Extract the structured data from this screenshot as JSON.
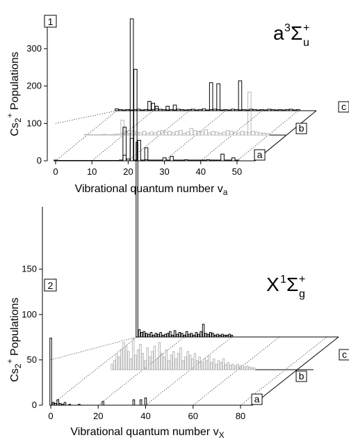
{
  "chart_data": [
    {
      "type": "bar",
      "panel_label": "1",
      "state_main": "a",
      "state_sup": "3",
      "state_sym": "Σ",
      "state_sub": "u",
      "state_sup2": "+",
      "xlabel_main": "Vibrational quantum number v",
      "xlabel_sub": "a",
      "ylabel_pre": "Cs",
      "ylabel_sub": "2",
      "ylabel_sup": "+",
      "ylabel_post": " Populations",
      "xlim": [
        0,
        55
      ],
      "ylim": [
        0,
        380
      ],
      "xticks": [
        "0",
        "10",
        "20",
        "30",
        "40",
        "50"
      ],
      "xtick_values": [
        0,
        10,
        20,
        30,
        40,
        50
      ],
      "yticks": [
        "0",
        "100",
        "200",
        "300"
      ],
      "ytick_values": [
        0,
        100,
        200,
        300
      ],
      "series_labels": [
        "a",
        "b",
        "c"
      ],
      "series": [
        {
          "label": "a",
          "x": [
            0,
            1,
            2,
            3,
            4,
            5,
            6,
            7,
            8,
            9,
            10,
            11,
            12,
            13,
            14,
            15,
            16,
            17,
            18,
            19,
            20,
            21,
            22,
            23,
            24,
            25,
            26,
            27,
            28,
            29,
            30,
            31,
            32,
            33,
            34,
            35,
            36,
            37,
            38,
            39,
            40,
            41,
            42,
            43,
            44,
            45,
            46,
            47,
            48,
            49,
            50
          ],
          "values": [
            2,
            1,
            1,
            1,
            1,
            1,
            1,
            1,
            1,
            1,
            1,
            1,
            1,
            1,
            1,
            1,
            1,
            1,
            2,
            15,
            5,
            60,
            2,
            55,
            2,
            3,
            2,
            2,
            2,
            2,
            8,
            2,
            12,
            2,
            2,
            2,
            3,
            2,
            2,
            2,
            2,
            2,
            3,
            2,
            2,
            2,
            18,
            2,
            2,
            8,
            2
          ]
        },
        {
          "label": "b",
          "x": [
            0,
            1,
            2,
            3,
            4,
            5,
            6,
            7,
            8,
            9,
            10,
            11,
            12,
            13,
            14,
            15,
            16,
            17,
            18,
            19,
            20,
            21,
            22,
            23,
            24,
            25,
            26,
            27,
            28,
            29,
            30,
            31,
            32,
            33,
            34,
            35,
            36,
            37,
            38,
            39,
            40,
            41,
            42,
            43,
            44,
            45,
            46,
            47,
            48,
            49,
            50
          ],
          "values": [
            2,
            1,
            1,
            1,
            1,
            2,
            1,
            1,
            2,
            3,
            5,
            10,
            4,
            12,
            8,
            6,
            10,
            5,
            8,
            6,
            10,
            12,
            8,
            10,
            6,
            10,
            12,
            5,
            8,
            18,
            12,
            10,
            8,
            14,
            6,
            10,
            8,
            5,
            8,
            12,
            10,
            8,
            6,
            10,
            8,
            6,
            10,
            8,
            6,
            5,
            4
          ]
        },
        {
          "label": "c",
          "x": [
            0,
            1,
            2,
            3,
            4,
            5,
            6,
            7,
            8,
            9,
            10,
            11,
            12,
            13,
            14,
            15,
            16,
            17,
            18,
            19,
            20,
            21,
            22,
            23,
            24,
            25,
            26,
            27,
            28,
            29,
            30,
            31,
            32,
            33,
            34,
            35,
            36,
            37,
            38,
            39,
            40,
            41,
            42,
            43,
            44,
            45,
            46,
            47,
            48,
            49,
            50
          ],
          "values": [
            5,
            3,
            2,
            3,
            2,
            3,
            4,
            2,
            3,
            2,
            3,
            5,
            4,
            3,
            2,
            3,
            2,
            4,
            3,
            2,
            3,
            4,
            2,
            3,
            5,
            2,
            3,
            4,
            3,
            2,
            3,
            2,
            4,
            3,
            2,
            3,
            2,
            4,
            3,
            2,
            3,
            2,
            4,
            3,
            2,
            3,
            2,
            3,
            4,
            2,
            3
          ]
        }
      ],
      "extra_a_bars": [
        {
          "x": 19,
          "value": 90
        },
        {
          "x": 21,
          "value": 380
        },
        {
          "x": 22,
          "value": 245
        },
        {
          "x": 25,
          "value": 35
        }
      ],
      "extra_c_bars": [
        {
          "x": 9,
          "value": 25
        },
        {
          "x": 10,
          "value": 20
        },
        {
          "x": 11,
          "value": 12
        },
        {
          "x": 14,
          "value": 12
        },
        {
          "x": 16,
          "value": 15
        },
        {
          "x": 26,
          "value": 75
        },
        {
          "x": 28,
          "value": 72
        },
        {
          "x": 34,
          "value": 80
        }
      ],
      "extra_b_bars": [
        {
          "x": 45,
          "value": 115
        },
        {
          "x": 10,
          "value": 40
        }
      ]
    },
    {
      "type": "bar",
      "panel_label": "2",
      "state_main": "X",
      "state_sup": "1",
      "state_sym": "Σ",
      "state_sub": "g",
      "state_sup2": "+",
      "xlabel_main": "Vibrational quantum number v",
      "xlabel_sub": "X",
      "ylabel_pre": "Cs",
      "ylabel_sub": "2",
      "ylabel_sup": "+",
      "ylabel_post": " Populations",
      "xlim": [
        0,
        85
      ],
      "ylim": [
        0,
        215
      ],
      "xticks": [
        "0",
        "20",
        "40",
        "60",
        "80"
      ],
      "xtick_values": [
        0,
        20,
        40,
        60,
        80
      ],
      "yticks": [
        "0",
        "50",
        "100",
        "150"
      ],
      "ytick_values": [
        0,
        50,
        100,
        150
      ],
      "series_labels": [
        "a",
        "b",
        "c"
      ],
      "series": [
        {
          "label": "a",
          "x": [
            0,
            1,
            2,
            3,
            4,
            5,
            6,
            8,
            12,
            22,
            35,
            38,
            40
          ],
          "values": [
            74,
            3,
            2,
            6,
            2,
            1,
            3,
            1,
            1,
            4,
            6,
            6,
            8
          ]
        },
        {
          "label": "b",
          "x": [
            0,
            1,
            2,
            3,
            4,
            5,
            6,
            7,
            8,
            9,
            10,
            11,
            12,
            13,
            14,
            15,
            16,
            17,
            18,
            19,
            20,
            21,
            22,
            23,
            24,
            25,
            26,
            27,
            28,
            29,
            30,
            31,
            32,
            33,
            34,
            35,
            36,
            37,
            38,
            39,
            40,
            41,
            42,
            43,
            44,
            45,
            46,
            47,
            48,
            49,
            50,
            51,
            52,
            53,
            54,
            55,
            56,
            57,
            58,
            59,
            60
          ],
          "values": [
            6,
            10,
            18,
            14,
            22,
            30,
            26,
            20,
            12,
            34,
            16,
            22,
            28,
            18,
            10,
            24,
            14,
            20,
            26,
            12,
            30,
            18,
            14,
            22,
            10,
            16,
            20,
            12,
            18,
            24,
            10,
            14,
            20,
            16,
            12,
            18,
            10,
            14,
            8,
            12,
            10,
            16,
            8,
            12,
            6,
            10,
            8,
            12,
            6,
            8,
            5,
            6,
            4,
            6,
            4,
            5,
            3,
            4,
            3,
            2,
            2
          ]
        },
        {
          "label": "c",
          "x": [
            0,
            1,
            2,
            3,
            4,
            5,
            6,
            7,
            8,
            9,
            10,
            11,
            12,
            13,
            14,
            15,
            16,
            17,
            18,
            19,
            20,
            21,
            22,
            23,
            24,
            25,
            26,
            27,
            28,
            29,
            30,
            31,
            32,
            33,
            34,
            35,
            36,
            37,
            38,
            39,
            40
          ],
          "values": [
            215,
            8,
            5,
            6,
            4,
            3,
            5,
            2,
            4,
            3,
            5,
            2,
            3,
            4,
            6,
            2,
            7,
            3,
            5,
            4,
            2,
            6,
            3,
            4,
            2,
            5,
            3,
            6,
            14,
            4,
            3,
            5,
            4,
            2,
            3,
            2,
            3,
            2,
            2,
            3,
            2
          ]
        }
      ]
    }
  ]
}
